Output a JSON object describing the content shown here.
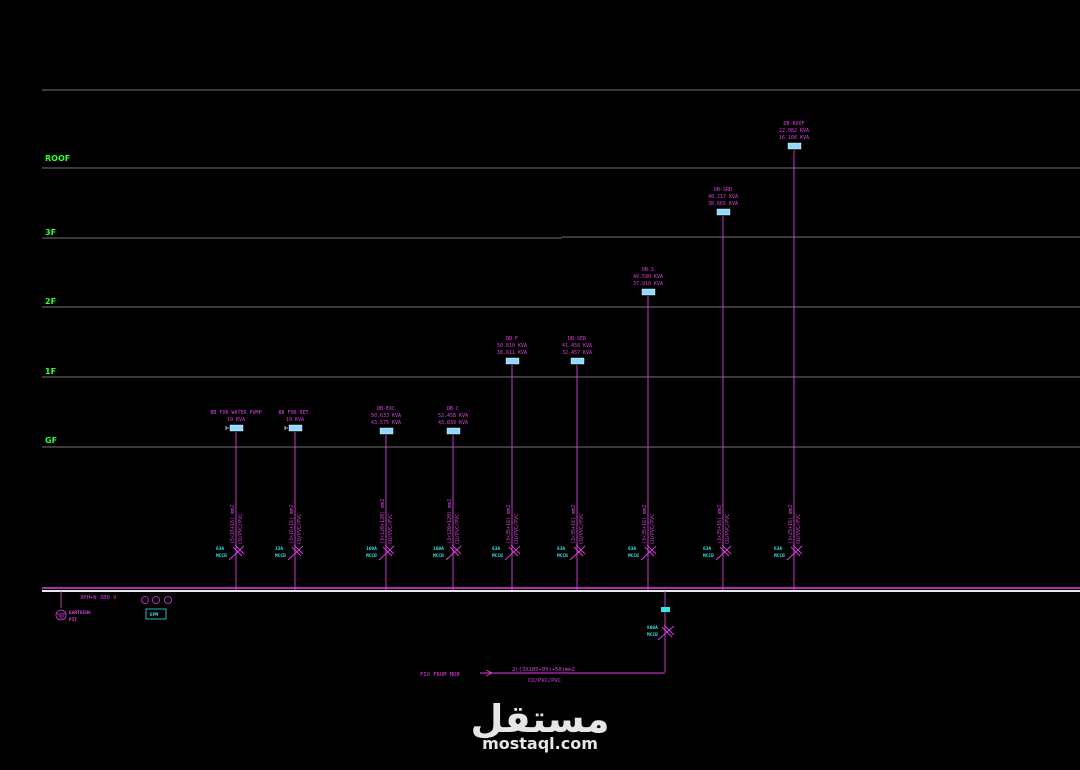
{
  "levels": [
    "ROOF",
    "3F",
    "2F",
    "1F",
    "GF"
  ],
  "boards": [
    {
      "name": "BB FOR WATER PUMP",
      "kva1": "10 KVA",
      "kva2": "",
      "cable": "(5×16+16) mm2",
      "cable2": "CU/PVC/PVC",
      "breaker": "63A",
      "breaker_type": "MCCB"
    },
    {
      "name": "BB FOR RET.",
      "kva1": "10 KVA",
      "kva2": "",
      "cable": "(3×16+16) mm2",
      "cable2": "CU/PVC/PVC",
      "breaker": "32A",
      "breaker_type": "MCCB"
    },
    {
      "name": "DB-EXC",
      "kva1": "50.633 KVA",
      "kva2": "43.575 KVA",
      "cable": "(3×120+120) mm2",
      "cable2": "CU/PVC/PVC",
      "breaker": "160A",
      "breaker_type": "MCCB"
    },
    {
      "name": "DB-C",
      "kva1": "52.458 KVA",
      "kva2": "43.839 KVA",
      "cable": "(3×120+120) mm2",
      "cable2": "CU/PVC/PVC",
      "breaker": "160A",
      "breaker_type": "MCCB"
    },
    {
      "name": "DB-F",
      "kva1": "50.810 KVA",
      "kva2": "38.611 KVA",
      "cable": "(3×35+16) mm2",
      "cable2": "CU/PVC/PVC",
      "breaker": "63A",
      "breaker_type": "MCCB"
    },
    {
      "name": "DB-SER",
      "kva1": "41.456 KVA",
      "kva2": "32.457 KVA",
      "cable": "(3×35+16) mm2",
      "cable2": "CU/PVC/PVC",
      "breaker": "63A",
      "breaker_type": "MCCB"
    },
    {
      "name": "DB-S",
      "kva1": "49.590 KVA",
      "kva2": "37.910 KVA",
      "cable": "(3×35+16) mm2",
      "cable2": "CU/PVC/PVC",
      "breaker": "63A",
      "breaker_type": "MCCB"
    },
    {
      "name": "DB-SRD",
      "kva1": "48.217 KVA",
      "kva2": "38.665 KVA",
      "cable": "(3×35+16) mm2",
      "cable2": "CU/PVC/PVC",
      "breaker": "63A",
      "breaker_type": "MCCB"
    },
    {
      "name": "DB-ROOF",
      "kva1": "22.082 KVA",
      "kva2": "16.108 KVA",
      "cable": "(3×25+16) mm2",
      "cable2": "CU/PVC/PVC",
      "breaker": "63A",
      "breaker_type": "MCCB"
    }
  ],
  "busbar": {
    "label": "3PH+N 380 V",
    "earthing": "EARTHING",
    "pit": "PIT",
    "meter": "EPM"
  },
  "incomer": {
    "breaker": "800A",
    "breaker_type": "MCCB",
    "feed_label": "FIO FROM MDB",
    "cable": "2((3X185+95)+50)mm2",
    "cable2": "CU/PVC/PVC"
  },
  "watermark": {
    "arabic": "مستقل",
    "latin": "mostaql.com"
  }
}
